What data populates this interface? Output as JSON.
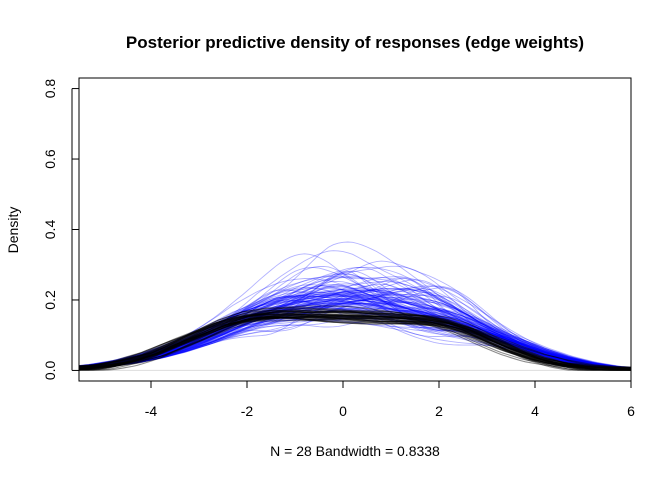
{
  "chart_data": {
    "type": "line",
    "title": "Posterior predictive density of responses (edge weights)",
    "xlabel": "N = 28   Bandwidth = 0.8338",
    "ylabel": "Density",
    "xlim": [
      -5.5,
      6.0
    ],
    "ylim": [
      -0.03,
      0.83
    ],
    "x_ticks": [
      -4,
      -2,
      0,
      2,
      4,
      6
    ],
    "x_tick_labels": [
      "-4",
      "-2",
      "0",
      "2",
      "4",
      "6"
    ],
    "y_ticks": [
      0.0,
      0.2,
      0.4,
      0.6,
      0.8
    ],
    "y_tick_labels": [
      "0.0",
      "0.2",
      "0.4",
      "0.6",
      "0.8"
    ],
    "grid": false,
    "legend": "none",
    "colors": {
      "simulated": "#0000ff",
      "observed": "#000000",
      "axes": "#000000",
      "baseline": "#dddddd"
    },
    "series": [
      {
        "role": "replicated densities (overlay of many draws)",
        "color": "#0000ff",
        "x": [
          -5.5,
          -5,
          -4.5,
          -4,
          -3.5,
          -3,
          -2.5,
          -2,
          -1.5,
          -1,
          -0.5,
          0,
          0.5,
          1,
          1.5,
          2,
          2.5,
          3,
          3.5,
          4,
          4.5,
          5,
          5.5,
          6
        ],
        "y": [
          0.008,
          0.015,
          0.025,
          0.04,
          0.06,
          0.085,
          0.115,
          0.145,
          0.165,
          0.18,
          0.19,
          0.195,
          0.19,
          0.18,
          0.165,
          0.15,
          0.13,
          0.105,
          0.08,
          0.055,
          0.035,
          0.02,
          0.01,
          0.005
        ]
      },
      {
        "role": "observed / black densities",
        "color": "#000000",
        "x": [
          -5.5,
          -5,
          -4.5,
          -4,
          -3.5,
          -3,
          -2.5,
          -2,
          -1.5,
          -1,
          -0.5,
          0,
          0.5,
          1,
          1.5,
          2,
          2.5,
          3,
          3.5,
          4,
          4.5,
          5,
          5.5,
          6
        ],
        "y": [
          0.005,
          0.012,
          0.025,
          0.045,
          0.075,
          0.105,
          0.135,
          0.155,
          0.162,
          0.163,
          0.16,
          0.158,
          0.155,
          0.152,
          0.148,
          0.14,
          0.12,
          0.09,
          0.06,
          0.035,
          0.018,
          0.008,
          0.003,
          0.001
        ]
      }
    ]
  }
}
